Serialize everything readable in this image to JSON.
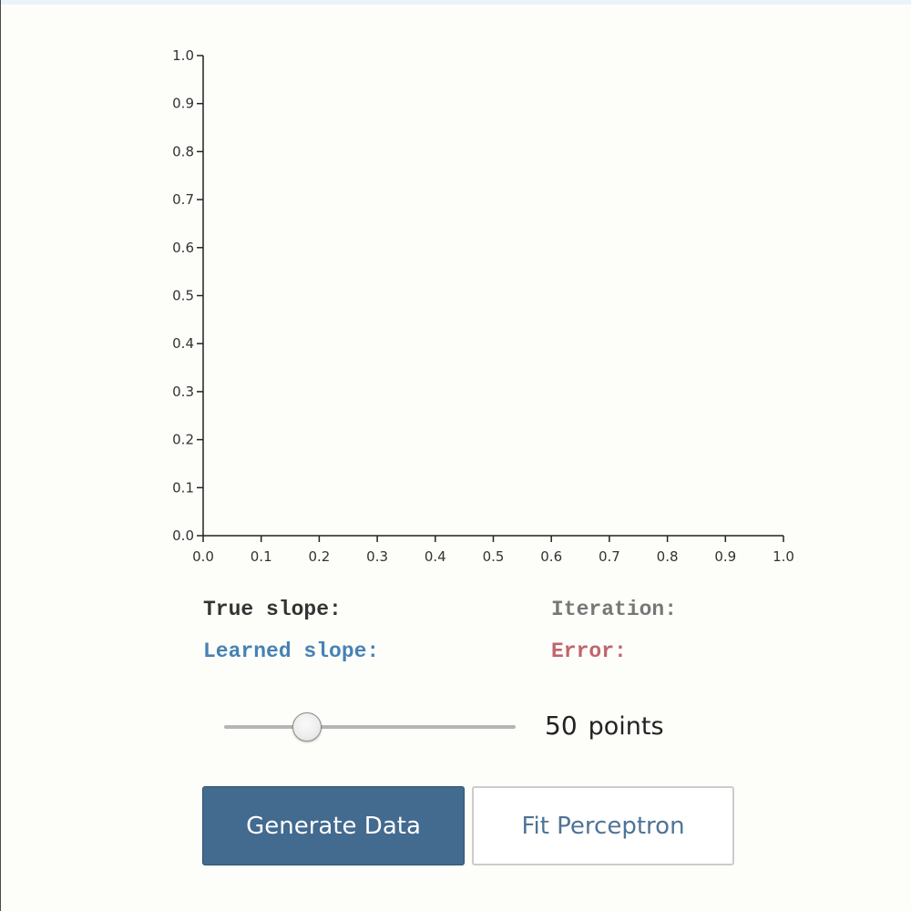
{
  "chart_data": {
    "type": "scatter",
    "points": [],
    "xlim": [
      0.0,
      1.0
    ],
    "ylim": [
      0.0,
      1.0
    ],
    "x_ticks": [
      "0.0",
      "0.1",
      "0.2",
      "0.3",
      "0.4",
      "0.5",
      "0.6",
      "0.7",
      "0.8",
      "0.9",
      "1.0"
    ],
    "y_ticks": [
      "0.0",
      "0.1",
      "0.2",
      "0.3",
      "0.4",
      "0.5",
      "0.6",
      "0.7",
      "0.8",
      "0.9",
      "1.0"
    ],
    "grid": false
  },
  "stats": {
    "true_slope_label": "True slope:",
    "learned_slope_label": "Learned slope:",
    "iteration_label": "Iteration:",
    "error_label": "Error:"
  },
  "slider": {
    "value": 50,
    "min": 0,
    "max": 200,
    "value_label": "50",
    "unit_label": "points"
  },
  "buttons": {
    "generate_label": "Generate Data",
    "fit_label": "Fit Perceptron"
  },
  "colors": {
    "true_slope": "#333333",
    "learned_slope": "#4682b4",
    "iteration": "#777777",
    "error": "#c0646e",
    "primary_button": "#436a8f"
  }
}
